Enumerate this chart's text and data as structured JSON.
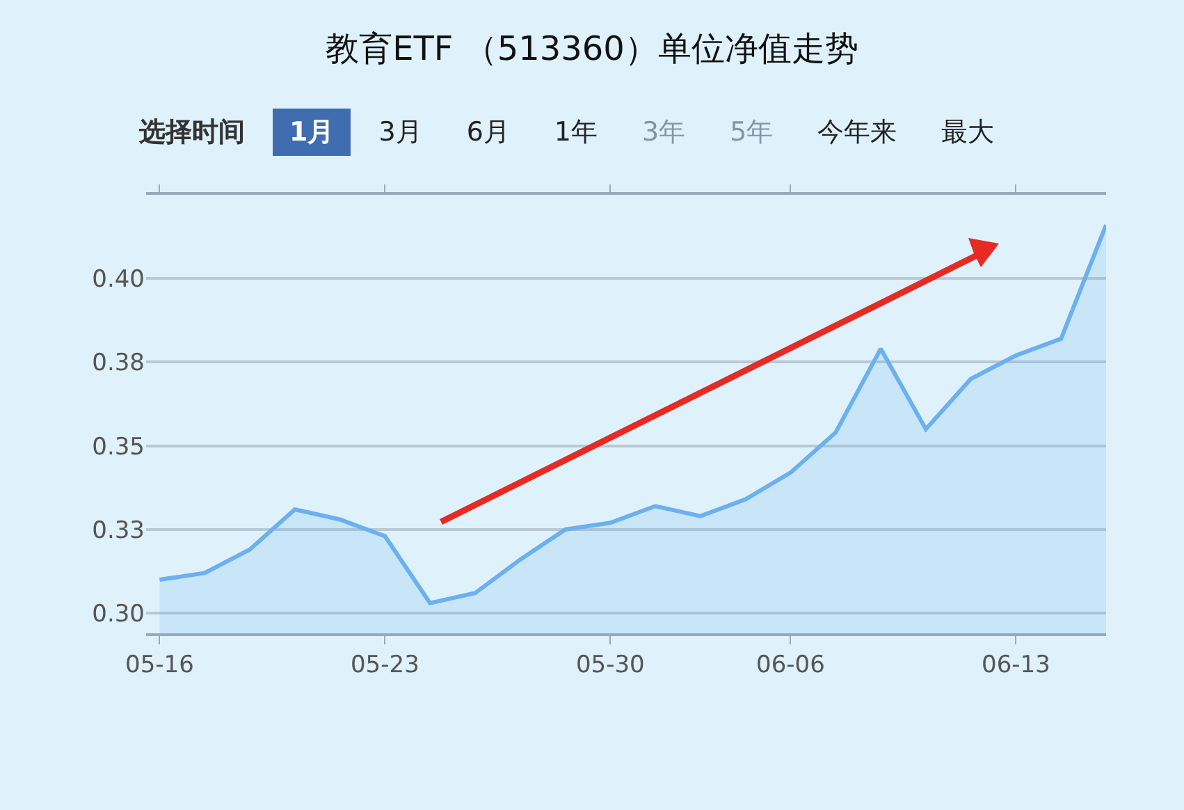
{
  "chart_data": {
    "type": "area",
    "title": "教育ETF （513360）单位净值走势",
    "annotations": [
      "选择时间",
      "1月",
      "3月",
      "6月",
      "1年",
      "3年",
      "5年",
      "今年来",
      "最大"
    ],
    "categories": [
      "05-16",
      null,
      null,
      null,
      null,
      "05-23",
      null,
      null,
      null,
      null,
      "05-30",
      null,
      null,
      null,
      "06-06",
      null,
      null,
      null,
      null,
      "06-13",
      null,
      null
    ],
    "series": [
      {
        "color": "#6cb0ef",
        "values": [
          0.31,
          0.312,
          0.319,
          0.331,
          0.328,
          0.323,
          0.303,
          0.306,
          0.316,
          0.325,
          0.327,
          0.332,
          0.329,
          0.334,
          0.342,
          0.354,
          0.379,
          0.355,
          0.37,
          0.377,
          0.382,
          0.416
        ]
      }
    ],
    "ylim": [
      0.294,
      0.425
    ],
    "yticks": [
      {
        "value": 0.3,
        "label": "0.30"
      },
      {
        "value": 0.325,
        "label": "0.33"
      },
      {
        "value": 0.35,
        "label": "0.35"
      },
      {
        "value": 0.375,
        "label": "0.38"
      },
      {
        "value": 0.4,
        "label": "0.40"
      },
      {
        "value": 0.425,
        "label": null
      }
    ],
    "grid": "y"
  }
}
